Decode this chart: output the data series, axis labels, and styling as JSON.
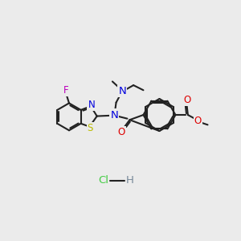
{
  "bg": "#ebebeb",
  "black": "#222222",
  "blue": "#0000dd",
  "red": "#dd0000",
  "yellow": "#bbbb00",
  "magenta": "#bb00bb",
  "green": "#44cc44",
  "gray": "#778899",
  "lw": 1.5,
  "fs": 8.5,
  "fs_hcl": 9.5,
  "xlim": [
    0,
    300
  ],
  "ylim": [
    0,
    300
  ]
}
